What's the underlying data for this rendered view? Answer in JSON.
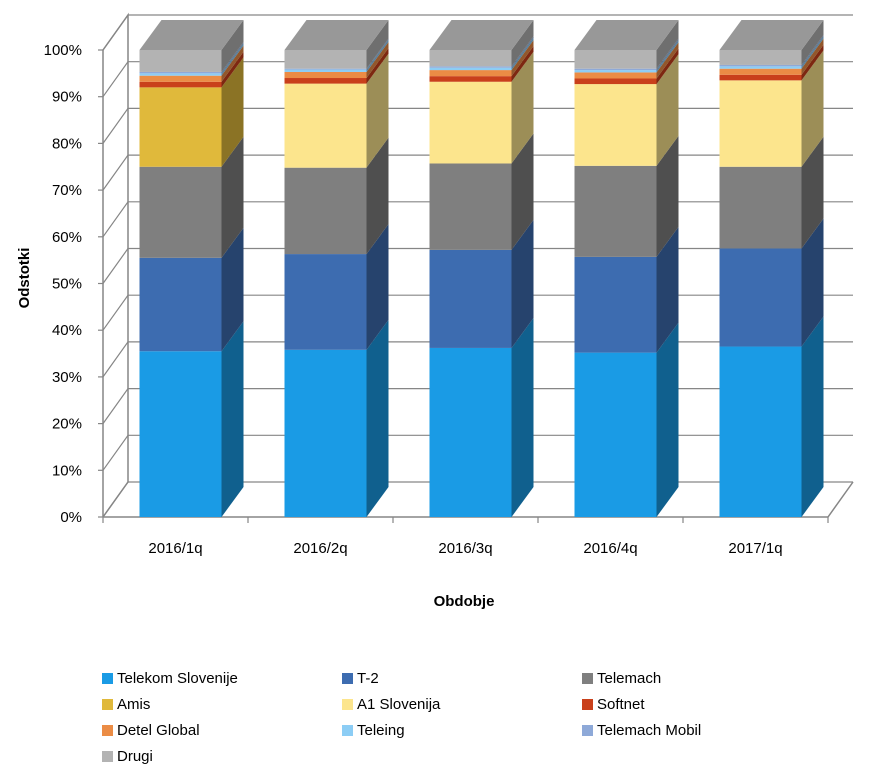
{
  "chart_data": {
    "type": "bar",
    "stacked": true,
    "percent": true,
    "three_d": true,
    "title": "",
    "xlabel": "Obdobje",
    "ylabel": "Odstotki",
    "ylim": [
      0,
      100
    ],
    "yticks": [
      "0%",
      "10%",
      "20%",
      "30%",
      "40%",
      "50%",
      "60%",
      "70%",
      "80%",
      "90%",
      "100%"
    ],
    "grid": true,
    "legend_position": "bottom",
    "categories": [
      "2016/1q",
      "2016/2q",
      "2016/3q",
      "2016/4q",
      "2017/1q"
    ],
    "series": [
      {
        "name": "Telekom Slovenije",
        "color": "#1A9BE5",
        "values": [
          35.5,
          35.8,
          36.2,
          35.2,
          36.5
        ]
      },
      {
        "name": "T-2",
        "color": "#3D6CB0",
        "values": [
          20.0,
          20.5,
          21.0,
          20.5,
          21.0
        ]
      },
      {
        "name": "Telemach",
        "color": "#7F7F7F",
        "values": [
          19.5,
          18.5,
          18.5,
          19.5,
          17.5
        ]
      },
      {
        "name": "Amis",
        "color": "#E0B93B",
        "values": [
          17.0,
          0,
          0,
          0,
          0
        ]
      },
      {
        "name": "A1 Slovenija",
        "color": "#FCE58D",
        "values": [
          0,
          18.0,
          17.5,
          17.5,
          18.5
        ]
      },
      {
        "name": "Softnet",
        "color": "#C9401B",
        "values": [
          1.2,
          1.2,
          1.2,
          1.2,
          1.2
        ]
      },
      {
        "name": "Detel Global",
        "color": "#EB8C45",
        "values": [
          1.3,
          1.3,
          1.3,
          1.3,
          1.3
        ]
      },
      {
        "name": "Teleing",
        "color": "#8CCDF5",
        "values": [
          0.5,
          0.5,
          0.5,
          0.5,
          0.5
        ]
      },
      {
        "name": "Telemach Mobil",
        "color": "#8EA9D8",
        "values": [
          0.3,
          0.2,
          0.3,
          0.3,
          0.3
        ]
      },
      {
        "name": "Drugi",
        "color": "#B3B3B3",
        "values": [
          4.7,
          4.0,
          3.5,
          4.0,
          3.2
        ]
      }
    ]
  }
}
